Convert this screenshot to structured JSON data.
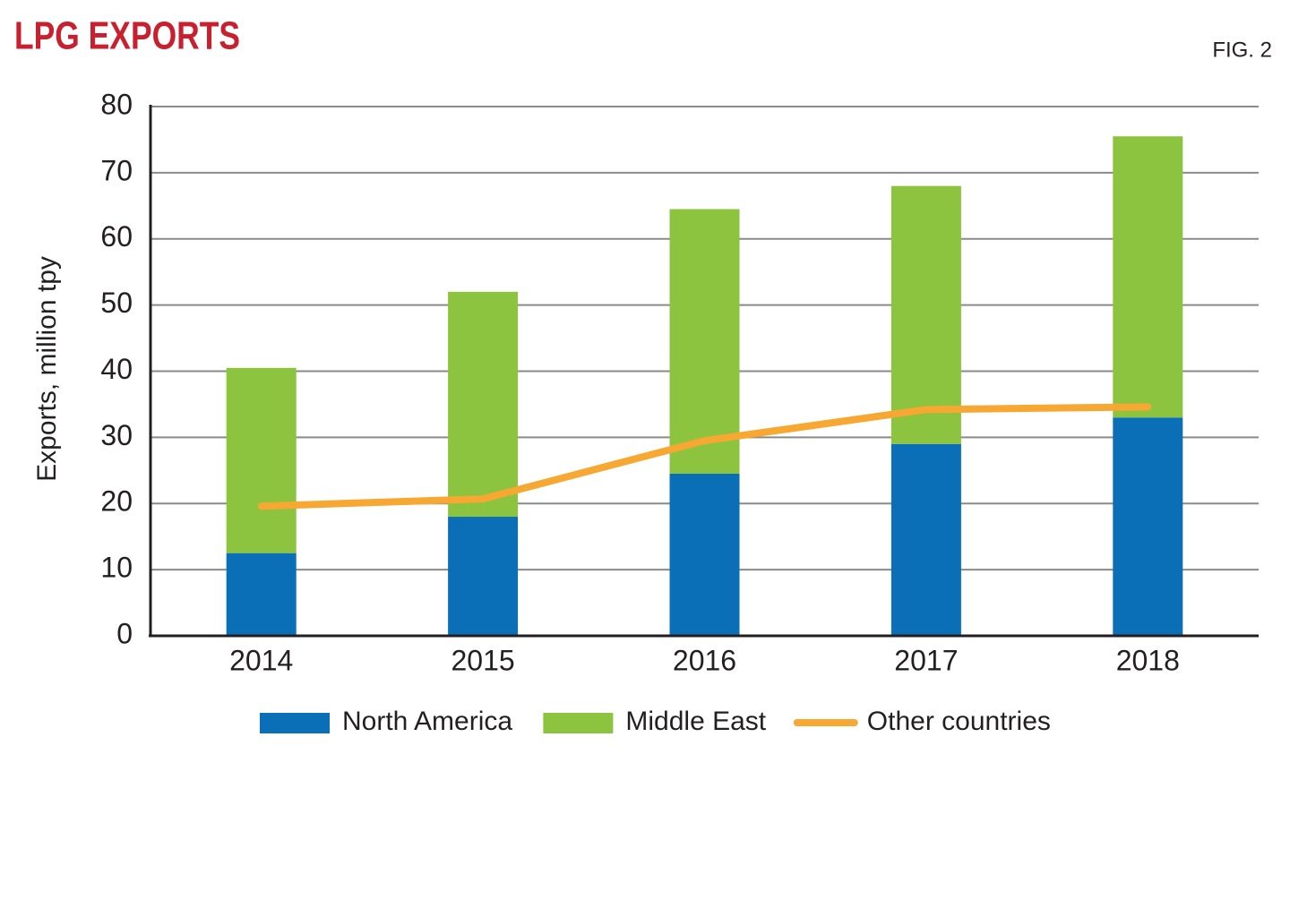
{
  "chart_data": {
    "type": "bar",
    "stacked": true,
    "title": "LPG EXPORTS",
    "figure_label": "FIG. 2",
    "y_label": "Exports, million tpy",
    "categories": [
      "2014",
      "2015",
      "2016",
      "2017",
      "2018"
    ],
    "series": [
      {
        "name": "North America",
        "type": "bar",
        "color": "#0a6fb7",
        "values": [
          12.5,
          18,
          24.5,
          29,
          33
        ]
      },
      {
        "name": "Middle East",
        "type": "bar",
        "color": "#8cc33f",
        "values": [
          28,
          34,
          40,
          39,
          42.5
        ]
      },
      {
        "name": "Other countries",
        "type": "line",
        "color": "#f7a833",
        "values": [
          19.6,
          20.7,
          29.5,
          34.2,
          34.6
        ]
      }
    ],
    "ylim": [
      0,
      80
    ],
    "yticks": [
      0,
      10,
      20,
      30,
      40,
      50,
      60,
      70,
      80
    ],
    "grid": true
  }
}
